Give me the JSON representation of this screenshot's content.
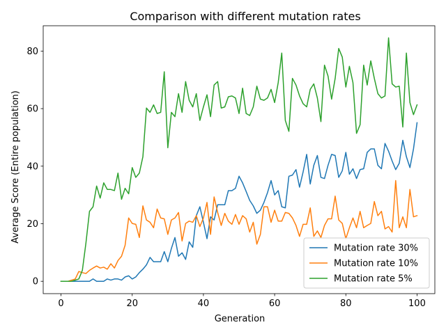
{
  "chart_data": {
    "type": "line",
    "title": "Comparison with different mutation rates",
    "xlabel": "Generation",
    "ylabel": "Average Score (Entire population)",
    "xlim": [
      -5,
      105
    ],
    "ylim": [
      -4.3,
      88.8
    ],
    "xticks": [
      0,
      20,
      40,
      60,
      80,
      100
    ],
    "yticks": [
      0,
      20,
      40,
      60,
      80
    ],
    "grid": false,
    "legend_position": "lower right",
    "x": [
      0,
      1,
      2,
      3,
      4,
      5,
      6,
      7,
      8,
      9,
      10,
      11,
      12,
      13,
      14,
      15,
      16,
      17,
      18,
      19,
      20,
      21,
      22,
      23,
      24,
      25,
      26,
      27,
      28,
      29,
      30,
      31,
      32,
      33,
      34,
      35,
      36,
      37,
      38,
      39,
      40,
      41,
      42,
      43,
      44,
      45,
      46,
      47,
      48,
      49,
      50,
      51,
      52,
      53,
      54,
      55,
      56,
      57,
      58,
      59,
      60,
      61,
      62,
      63,
      64,
      65,
      66,
      67,
      68,
      69,
      70,
      71,
      72,
      73,
      74,
      75,
      76,
      77,
      78,
      79,
      80,
      81,
      82,
      83,
      84,
      85,
      86,
      87,
      88,
      89,
      90,
      91,
      92,
      93,
      94,
      95,
      96,
      97,
      98,
      99,
      100
    ],
    "series": [
      {
        "name": "Mutation rate 30%",
        "color": "#1f77b4",
        "values": [
          0,
          0,
          0,
          0,
          0,
          0,
          0,
          0,
          0,
          0.8,
          0,
          0,
          0,
          0.8,
          0.4,
          0.8,
          0.8,
          0.4,
          1.5,
          1.9,
          0.8,
          1.5,
          3,
          4.2,
          5.7,
          8.3,
          6.8,
          6.8,
          6.8,
          10.3,
          6.8,
          11.4,
          15.2,
          8.7,
          9.9,
          7.6,
          13.7,
          11.8,
          22.8,
          25.9,
          20.5,
          14.8,
          22.4,
          21.3,
          26.6,
          26.6,
          26.6,
          31.5,
          31.5,
          32.3,
          36.5,
          34.2,
          31.2,
          28.1,
          26.2,
          23.6,
          24.7,
          27.4,
          30.8,
          35,
          30,
          31.5,
          25.9,
          25.5,
          36.5,
          36.9,
          38.8,
          32.7,
          38,
          44.1,
          33.8,
          40.3,
          43.7,
          36.1,
          35.7,
          40.3,
          44.1,
          43.7,
          36.1,
          38.4,
          44.8,
          37.2,
          39.1,
          35.7,
          38.8,
          39.1,
          44.8,
          46,
          46,
          40.3,
          39.1,
          47.9,
          45.2,
          41.8,
          38.8,
          41,
          49,
          43.3,
          39.5,
          46,
          55.1
        ]
      },
      {
        "name": "Mutation rate 10%",
        "color": "#ff7f0e",
        "values": [
          0,
          0,
          0,
          0.4,
          0.8,
          3.4,
          3,
          2.7,
          3.8,
          4.6,
          5.3,
          4.6,
          4.9,
          4.2,
          6.1,
          4.6,
          7.2,
          8.7,
          12.5,
          22,
          20.1,
          19.8,
          15.2,
          26.2,
          21.3,
          20.5,
          18.6,
          25.1,
          22,
          21.7,
          16.3,
          21.3,
          22,
          23.9,
          14,
          20.1,
          20.9,
          20.5,
          22.8,
          19,
          22,
          27.4,
          16.3,
          29.3,
          23.9,
          19.4,
          23.6,
          20.9,
          19.8,
          23.2,
          19.8,
          22.8,
          21.7,
          17.1,
          20.5,
          12.9,
          16.3,
          25.9,
          25.9,
          20.5,
          24.7,
          20.9,
          20.9,
          23.9,
          23.6,
          22,
          19.4,
          15.6,
          19.8,
          19.8,
          25.5,
          15.6,
          17.5,
          15.2,
          19.4,
          21.7,
          21.7,
          29.6,
          21.3,
          20.1,
          14.8,
          18.6,
          22,
          18.6,
          24.3,
          18.6,
          19.4,
          20.1,
          27.7,
          22.8,
          24.3,
          18.2,
          19,
          17.1,
          35,
          18.6,
          22.4,
          18.6,
          31.9,
          22.4,
          22.8
        ]
      },
      {
        "name": "Mutation rate 5%",
        "color": "#2ca02c",
        "values": [
          0,
          0,
          0,
          0,
          0.4,
          0.8,
          3.8,
          13.3,
          24.3,
          25.9,
          33.1,
          28.9,
          34.2,
          31.9,
          31.9,
          31.5,
          37.6,
          28.5,
          32.3,
          30.4,
          39.5,
          36.1,
          37.6,
          43.3,
          60.2,
          58.7,
          61.3,
          58.3,
          58.7,
          72.8,
          46.4,
          58.7,
          57.2,
          65.2,
          58.7,
          69.4,
          62.9,
          60.6,
          65.2,
          55.9,
          60.6,
          64.8,
          57.2,
          68.2,
          69.4,
          60.2,
          60.6,
          64.1,
          64.4,
          63.7,
          58.3,
          67.1,
          58.3,
          57.6,
          60.6,
          67.8,
          63.3,
          62.9,
          63.7,
          66.7,
          62.1,
          69,
          79.3,
          55.9,
          52.1,
          70.5,
          68.2,
          64.4,
          61.7,
          60.6,
          66.7,
          68.6,
          63.7,
          55.5,
          75.1,
          71.3,
          63.3,
          70.5,
          80.9,
          77.9,
          67.5,
          74.7,
          69,
          51.4,
          54.4,
          75.1,
          68.2,
          76.6,
          70.5,
          65.2,
          63.7,
          64.4,
          84.6,
          68.6,
          67.5,
          67.8,
          53.6,
          79.3,
          62.1,
          57.9,
          61.3
        ]
      }
    ]
  }
}
